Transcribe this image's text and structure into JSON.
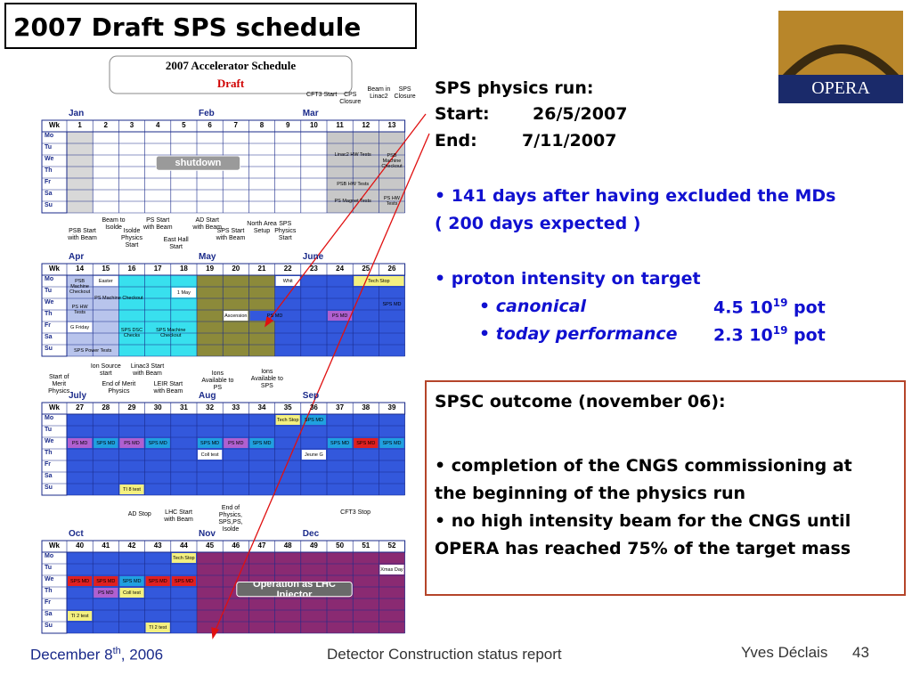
{
  "title": "2007 Draft SPS schedule",
  "logo": "OPERA",
  "schedule": {
    "header": "2007 Accelerator Schedule",
    "subheader": "Draft",
    "week_label": "Wk",
    "days": [
      "Mo",
      "Tu",
      "We",
      "Th",
      "Fr",
      "Sa",
      "Su"
    ],
    "blocks": [
      {
        "months": [
          "Jan",
          "Feb",
          "Mar"
        ],
        "weeks": [
          1,
          2,
          3,
          4,
          5,
          6,
          7,
          8,
          9,
          10,
          11,
          12,
          13
        ],
        "annotations": [
          "CFT3 Start",
          "CPS Closure",
          "Beam in Linac2",
          "SPS Closure"
        ],
        "cells": [
          "Linac2 HW Tests",
          "PSB HW Tests",
          "PS Magnet Tests",
          "PSB Machine Checkout",
          "PS HW Tests",
          "shutdown"
        ]
      },
      {
        "months": [
          "Apr",
          "May",
          "June"
        ],
        "weeks": [
          14,
          15,
          16,
          17,
          18,
          19,
          20,
          21,
          22,
          23,
          24,
          25,
          26
        ],
        "annotations": [
          "PSB Start with Beam",
          "Beam to Isolde",
          "Isolde Physics Start",
          "PS Start with Beam",
          "East Hall Start",
          "AD Start with Beam",
          "SPS Start with Beam",
          "North Area Setup",
          "SPS Physics Start"
        ],
        "cells": [
          "PSB Machine Checkout",
          "PS HW Tests",
          "Easter",
          "G Friday",
          "SPS Power Tests",
          "PS Machine Checkout",
          "SPS DSC Checks",
          "SPS Machine Checkout",
          "1 May",
          "Ascension",
          "Whit",
          "PS MD",
          "PS MD",
          "Tech Stop",
          "SPS MD"
        ]
      },
      {
        "months": [
          "July",
          "Aug",
          "Sep"
        ],
        "weeks": [
          27,
          28,
          29,
          30,
          31,
          32,
          33,
          34,
          35,
          36,
          37,
          38,
          39
        ],
        "annotations": [
          "Start of Merit Physics",
          "Ion Source start",
          "End of Merit Physics",
          "Linac3 Start with Beam",
          "LEIR Start with Beam",
          "Ions Available to PS",
          "Ions Available to SPS"
        ],
        "cells": [
          "PS MD",
          "SPS MD",
          "PS MD",
          "SPS MD",
          "SPS MD",
          "PS MD",
          "SPS MD",
          "Coll test",
          "TI 8 test",
          "Tech Stop",
          "SPS MD",
          "Jeune G",
          "SPS MD",
          "SPS MD",
          "SPS MD"
        ]
      },
      {
        "months": [
          "Oct",
          "Nov",
          "Dec"
        ],
        "weeks": [
          40,
          41,
          42,
          43,
          44,
          45,
          46,
          47,
          48,
          49,
          50,
          51,
          52
        ],
        "annotations": [
          "AD Stop",
          "LHC Start with Beam",
          "End of Physics, SPS,PS, Isolde",
          "CFT3 Stop"
        ],
        "cells": [
          "Tech Stop",
          "SPS MD",
          "SPS MD",
          "SPS MD",
          "SPS MD",
          "SPS MD",
          "PS MD",
          "Coll test",
          "TI 2 test",
          "TI 2 test",
          "Xmas Day",
          "Operation as LHC Injector"
        ]
      }
    ]
  },
  "physics_run": {
    "heading": "SPS physics run:",
    "start_label": "Start:",
    "start": "26/5/2007",
    "end_label": "End:",
    "end": "7/11/2007",
    "days_line1": "• 141 days after having excluded the MDs",
    "days_line2": "( 200 days expected )",
    "intensity_heading": "• proton intensity on target",
    "intensity": [
      {
        "name": "• canonical",
        "mantissa": "4.5 10",
        "exponent": "19",
        "unit": "pot"
      },
      {
        "name": "• today performance",
        "mantissa": "2.3 10",
        "exponent": "19",
        "unit": "pot"
      }
    ]
  },
  "spsc": {
    "heading": "SPSC outcome (november 06):",
    "items": [
      "• completion of the CNGS commissioning at the beginning of the physics run",
      "• no high intensity beam for the CNGS until OPERA has reached 75% of the target mass"
    ]
  },
  "footer": {
    "date": "December 8",
    "date_sup": "th",
    "date_rest": ", 2006",
    "center": "Detector Construction status report",
    "author": "Yves Déclais",
    "page": "43"
  }
}
